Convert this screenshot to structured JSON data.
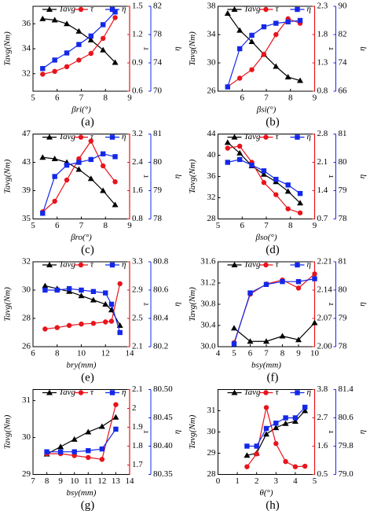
{
  "chart_data": [
    {
      "type": "line",
      "caption": "(a)",
      "x_label": "βri(°)",
      "y_label": "Tavg(Nm)",
      "y2_label": "τ",
      "y3_label": "η",
      "x": [
        5.4,
        5.9,
        6.4,
        6.9,
        7.4,
        7.9,
        8.4
      ],
      "xlim": [
        5,
        9
      ],
      "xticks": [
        5,
        6,
        7,
        8,
        9
      ],
      "ylim": [
        30.6,
        37.4
      ],
      "yticks": [
        32,
        34,
        36
      ],
      "y2lim": [
        0.6,
        1.5
      ],
      "y2ticks": [
        0.6,
        0.9,
        1.2,
        1.5
      ],
      "y3lim": [
        70,
        82
      ],
      "y3ticks": [
        70,
        74,
        78,
        82
      ],
      "series": [
        {
          "name": "Tavg",
          "color": "#000000",
          "marker": "triangle",
          "axis": "y",
          "values": [
            36.4,
            36.3,
            36.0,
            35.4,
            34.7,
            33.9,
            32.9
          ]
        },
        {
          "name": "τ",
          "color": "#e8141c",
          "marker": "circle",
          "axis": "y2",
          "values": [
            0.78,
            0.81,
            0.86,
            0.93,
            1.0,
            1.16,
            1.38
          ]
        },
        {
          "name": "η",
          "color": "#1428e8",
          "marker": "square",
          "axis": "y3",
          "values": [
            73.2,
            74.4,
            75.4,
            76.6,
            77.8,
            79.4,
            81.2
          ]
        }
      ]
    },
    {
      "type": "line",
      "caption": "(b)",
      "x_label": "βsi(°)",
      "y_label": "Tavg(Nm)",
      "y2_label": "τ",
      "y3_label": "η",
      "x": [
        5.4,
        5.9,
        6.4,
        6.9,
        7.4,
        7.9,
        8.4
      ],
      "xlim": [
        5,
        9
      ],
      "xticks": [
        6,
        7,
        8,
        9
      ],
      "ylim": [
        26,
        38
      ],
      "yticks": [
        26,
        30,
        34,
        38
      ],
      "y2lim": [
        0.8,
        2.3
      ],
      "y2ticks": [
        0.8,
        1.3,
        1.8,
        2.3
      ],
      "y3lim": [
        66,
        90
      ],
      "y3ticks": [
        66,
        74,
        82,
        90
      ],
      "series": [
        {
          "name": "Tavg",
          "color": "#000000",
          "marker": "triangle",
          "axis": "y",
          "values": [
            37.0,
            34.6,
            33.0,
            31.2,
            29.5,
            28.0,
            27.5
          ]
        },
        {
          "name": "τ",
          "color": "#e8141c",
          "marker": "circle",
          "axis": "y2",
          "values": [
            0.88,
            1.03,
            1.18,
            1.45,
            1.8,
            2.08,
            2.0
          ]
        },
        {
          "name": "η",
          "color": "#1428e8",
          "marker": "square",
          "axis": "y3",
          "values": [
            67.2,
            78,
            81.8,
            84.2,
            85.2,
            85.6,
            86.0
          ]
        }
      ]
    },
    {
      "type": "line",
      "caption": "(c)",
      "x_label": "βro(°)",
      "y_label": "Tavg(Nm)",
      "y2_label": "τ",
      "y3_label": "η",
      "x": [
        5.4,
        5.9,
        6.4,
        6.9,
        7.4,
        7.9,
        8.4
      ],
      "xlim": [
        5,
        9
      ],
      "xticks": [
        5,
        6,
        7,
        8,
        9
      ],
      "ylim": [
        35,
        47
      ],
      "yticks": [
        35,
        39,
        43,
        47
      ],
      "y2lim": [
        0.8,
        3.2
      ],
      "y2ticks": [
        0.8,
        1.6,
        2.4,
        3.2
      ],
      "y3lim": [
        78,
        81
      ],
      "y3ticks": [
        78,
        79,
        80,
        81
      ],
      "series": [
        {
          "name": "Tavg",
          "color": "#000000",
          "marker": "triangle",
          "axis": "y",
          "values": [
            43.7,
            43.5,
            43.0,
            42.0,
            40.7,
            39.0,
            37.0
          ]
        },
        {
          "name": "τ",
          "color": "#e8141c",
          "marker": "circle",
          "axis": "y2",
          "values": [
            1.0,
            1.3,
            1.9,
            2.5,
            3.0,
            2.3,
            1.85
          ]
        },
        {
          "name": "η",
          "color": "#1428e8",
          "marker": "square",
          "axis": "y3",
          "values": [
            78.2,
            79.5,
            79.9,
            80.0,
            80.1,
            80.3,
            80.2
          ]
        }
      ]
    },
    {
      "type": "line",
      "caption": "(d)",
      "x_label": "βso(°)",
      "y_label": "Tavg(Nm)",
      "y2_label": "τ",
      "y3_label": "η",
      "x": [
        5.4,
        5.9,
        6.4,
        6.9,
        7.4,
        7.9,
        8.4
      ],
      "xlim": [
        5,
        9
      ],
      "xticks": [
        5,
        6,
        7,
        8,
        9
      ],
      "ylim": [
        28,
        44
      ],
      "yticks": [
        28,
        32,
        36,
        40,
        44
      ],
      "y2lim": [
        0.7,
        2.8
      ],
      "y2ticks": [
        0.7,
        1.4,
        2.1,
        2.8
      ],
      "y3lim": [
        78,
        81
      ],
      "y3ticks": [
        78,
        79,
        80,
        81
      ],
      "series": [
        {
          "name": "Tavg",
          "color": "#000000",
          "marker": "triangle",
          "axis": "y",
          "values": [
            42.4,
            40.4,
            38.0,
            36.4,
            35.0,
            33.2,
            31.0
          ]
        },
        {
          "name": "τ",
          "color": "#e8141c",
          "marker": "circle",
          "axis": "y2",
          "values": [
            2.45,
            2.5,
            2.1,
            1.6,
            1.3,
            0.95,
            0.85
          ]
        },
        {
          "name": "η",
          "color": "#1428e8",
          "marker": "square",
          "axis": "y3",
          "values": [
            80.0,
            80.1,
            79.9,
            79.7,
            79.4,
            79.2,
            78.9
          ]
        }
      ]
    },
    {
      "type": "line",
      "caption": "(e)",
      "x_label": "bry(mm)",
      "y_label": "Tavg(Nm)",
      "y2_label": "τ",
      "y3_label": "η",
      "x": [
        7,
        8,
        9,
        10,
        11,
        12,
        12.5,
        13.2
      ],
      "xlim": [
        6,
        14
      ],
      "xticks": [
        6,
        8,
        10,
        12,
        14
      ],
      "ylim": [
        26,
        32
      ],
      "yticks": [
        26,
        28,
        30,
        32
      ],
      "y2lim": [
        2.1,
        3.3
      ],
      "y2ticks": [
        2.1,
        2.5,
        2.9,
        3.3
      ],
      "y3lim": [
        80.2,
        80.8
      ],
      "y3ticks": [
        80.2,
        80.4,
        80.6,
        80.8
      ],
      "series": [
        {
          "name": "Tavg",
          "color": "#000000",
          "marker": "triangle",
          "axis": "y",
          "values": [
            30.3,
            30.1,
            29.9,
            29.6,
            29.3,
            29.0,
            28.6,
            27.5
          ]
        },
        {
          "name": "τ",
          "color": "#e8141c",
          "marker": "circle",
          "axis": "y2",
          "values": [
            2.35,
            2.37,
            2.4,
            2.42,
            2.43,
            2.45,
            2.46,
            2.99
          ]
        },
        {
          "name": "η",
          "color": "#1428e8",
          "marker": "square",
          "axis": "y3",
          "values": [
            80.6,
            80.6,
            80.61,
            80.6,
            80.59,
            80.58,
            80.5,
            80.3
          ]
        }
      ]
    },
    {
      "type": "line",
      "caption": "(f)",
      "x_label": "bsy(mm)",
      "y_label": "Tavg(Nm)",
      "y2_label": "τ",
      "y3_label": "η",
      "x": [
        5,
        6,
        7,
        8,
        9,
        10
      ],
      "xlim": [
        4,
        10
      ],
      "xticks": [
        4,
        5,
        6,
        7,
        8,
        9,
        10
      ],
      "ylim": [
        30.0,
        31.6
      ],
      "yticks": [
        {
          "value": 30,
          "label": "30.0"
        },
        30.4,
        30.8,
        31.2,
        31.6
      ],
      "y2lim": [
        2.0,
        2.21
      ],
      "y2ticks": [
        {
          "value": 2,
          "label": "2.00"
        },
        2.07,
        2.14,
        2.21
      ],
      "y3lim": [
        78,
        81
      ],
      "y3ticks": [
        78,
        79,
        80,
        81
      ],
      "series": [
        {
          "name": "Tavg",
          "color": "#000000",
          "marker": "triangle",
          "axis": "y",
          "values": [
            30.35,
            30.1,
            30.1,
            30.2,
            30.13,
            30.45
          ]
        },
        {
          "name": "τ",
          "color": "#e8141c",
          "marker": "circle",
          "axis": "y2",
          "values": [
            2.01,
            2.13,
            2.155,
            2.165,
            2.145,
            2.18
          ]
        },
        {
          "name": "η",
          "color": "#1428e8",
          "marker": "square",
          "axis": "y3",
          "values": [
            78.1,
            79.9,
            80.2,
            80.3,
            80.3,
            80.4
          ]
        }
      ]
    },
    {
      "type": "line",
      "caption": "(g)",
      "x_label": "bsy(mm)",
      "y_label": "Tavg(Nm)",
      "y2_label": "τ",
      "y3_label": "η",
      "x": [
        8,
        9,
        10,
        11,
        12,
        13
      ],
      "xlim": [
        7,
        14
      ],
      "xticks": [
        7,
        8,
        9,
        10,
        11,
        12,
        13,
        14
      ],
      "ylim": [
        29,
        31.3
      ],
      "yticks": [
        29,
        30,
        31
      ],
      "y2lim": [
        1.65,
        2.1
      ],
      "y2ticks": [
        1.7,
        1.8,
        1.9,
        2.0,
        2.1
      ],
      "y3lim": [
        80.35,
        80.5
      ],
      "y3ticks": [
        80.35,
        {
          "value": 80.4,
          "label": "80.40"
        },
        80.45,
        {
          "value": 80.5,
          "label": "80.50"
        }
      ],
      "series": [
        {
          "name": "Tavg",
          "color": "#000000",
          "marker": "triangle",
          "axis": "y",
          "values": [
            29.55,
            29.75,
            29.95,
            30.15,
            30.3,
            30.55
          ]
        },
        {
          "name": "τ",
          "color": "#e8141c",
          "marker": "circle",
          "axis": "y2",
          "values": [
            1.76,
            1.76,
            1.75,
            1.74,
            1.73,
            2.02
          ]
        },
        {
          "name": "η",
          "color": "#1428e8",
          "marker": "square",
          "axis": "y3",
          "values": [
            80.39,
            80.39,
            80.39,
            80.392,
            80.395,
            80.43
          ]
        }
      ]
    },
    {
      "type": "line",
      "caption": "(h)",
      "x_label": "θ(°)",
      "y_label": "Tavg(Nm)",
      "y2_label": "τ",
      "y3_label": "η",
      "x": [
        1.5,
        2,
        2.5,
        3,
        3.5,
        4,
        4.5
      ],
      "xlim": [
        0,
        5
      ],
      "xticks": [
        0,
        1,
        2,
        3,
        4,
        5
      ],
      "ylim": [
        28,
        32
      ],
      "yticks": [
        28,
        29,
        30,
        31
      ],
      "y2lim": [
        0.5,
        3.8
      ],
      "y2ticks": [
        0.5,
        1.6,
        2.7,
        3.8
      ],
      "y3lim": [
        79.0,
        81.4
      ],
      "y3ticks": [
        {
          "value": 79,
          "label": "79.0"
        },
        79.8,
        80.6,
        81.4
      ],
      "series": [
        {
          "name": "Tavg",
          "color": "#000000",
          "marker": "triangle",
          "axis": "y",
          "values": [
            28.9,
            29.0,
            29.9,
            30.2,
            30.4,
            30.5,
            31.0
          ]
        },
        {
          "name": "τ",
          "color": "#e8141c",
          "marker": "circle",
          "axis": "y2",
          "values": [
            0.8,
            1.3,
            3.1,
            1.7,
            1.0,
            0.8,
            0.82
          ]
        },
        {
          "name": "η",
          "color": "#1428e8",
          "marker": "square",
          "axis": "y3",
          "values": [
            79.8,
            79.8,
            80.3,
            80.45,
            80.6,
            80.6,
            80.9
          ]
        }
      ]
    }
  ]
}
